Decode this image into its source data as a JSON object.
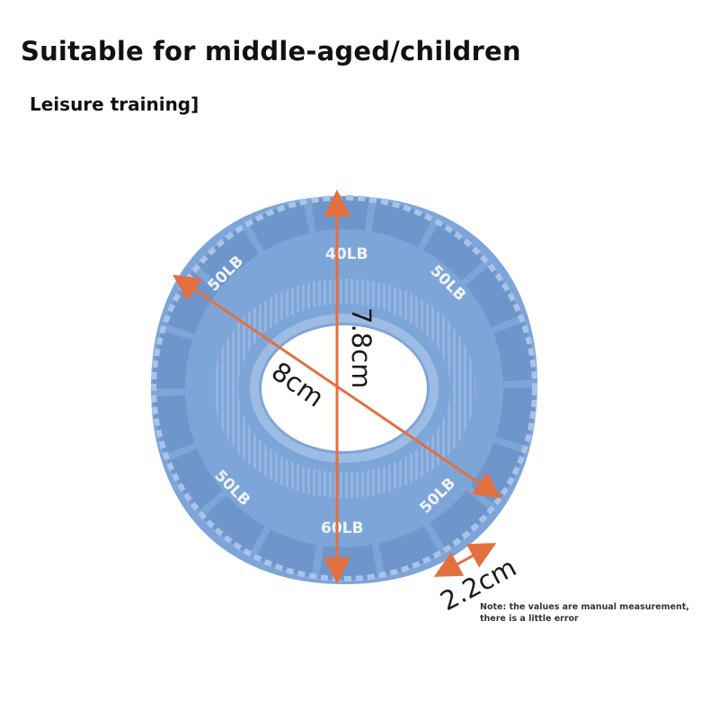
{
  "header": {
    "title": "Suitable for middle-aged/children",
    "subtitle": "Leisure training]"
  },
  "product": {
    "name": "grip-ring",
    "color": "#7ea5d8",
    "panel_color": "#6b93c9",
    "resistance_labels": {
      "top": "40LB",
      "top_right": "50LB",
      "bottom_right": "50LB",
      "bottom": "60LB",
      "bottom_left": "50LB",
      "top_left": "50LB"
    }
  },
  "dimensions": {
    "arrow_color": "#e2703f",
    "diameter": "8cm",
    "height": "7.8cm",
    "thickness": "2.2cm"
  },
  "note": {
    "line1": "Note: the values are manual measurement,",
    "line2": "there is a little error"
  }
}
